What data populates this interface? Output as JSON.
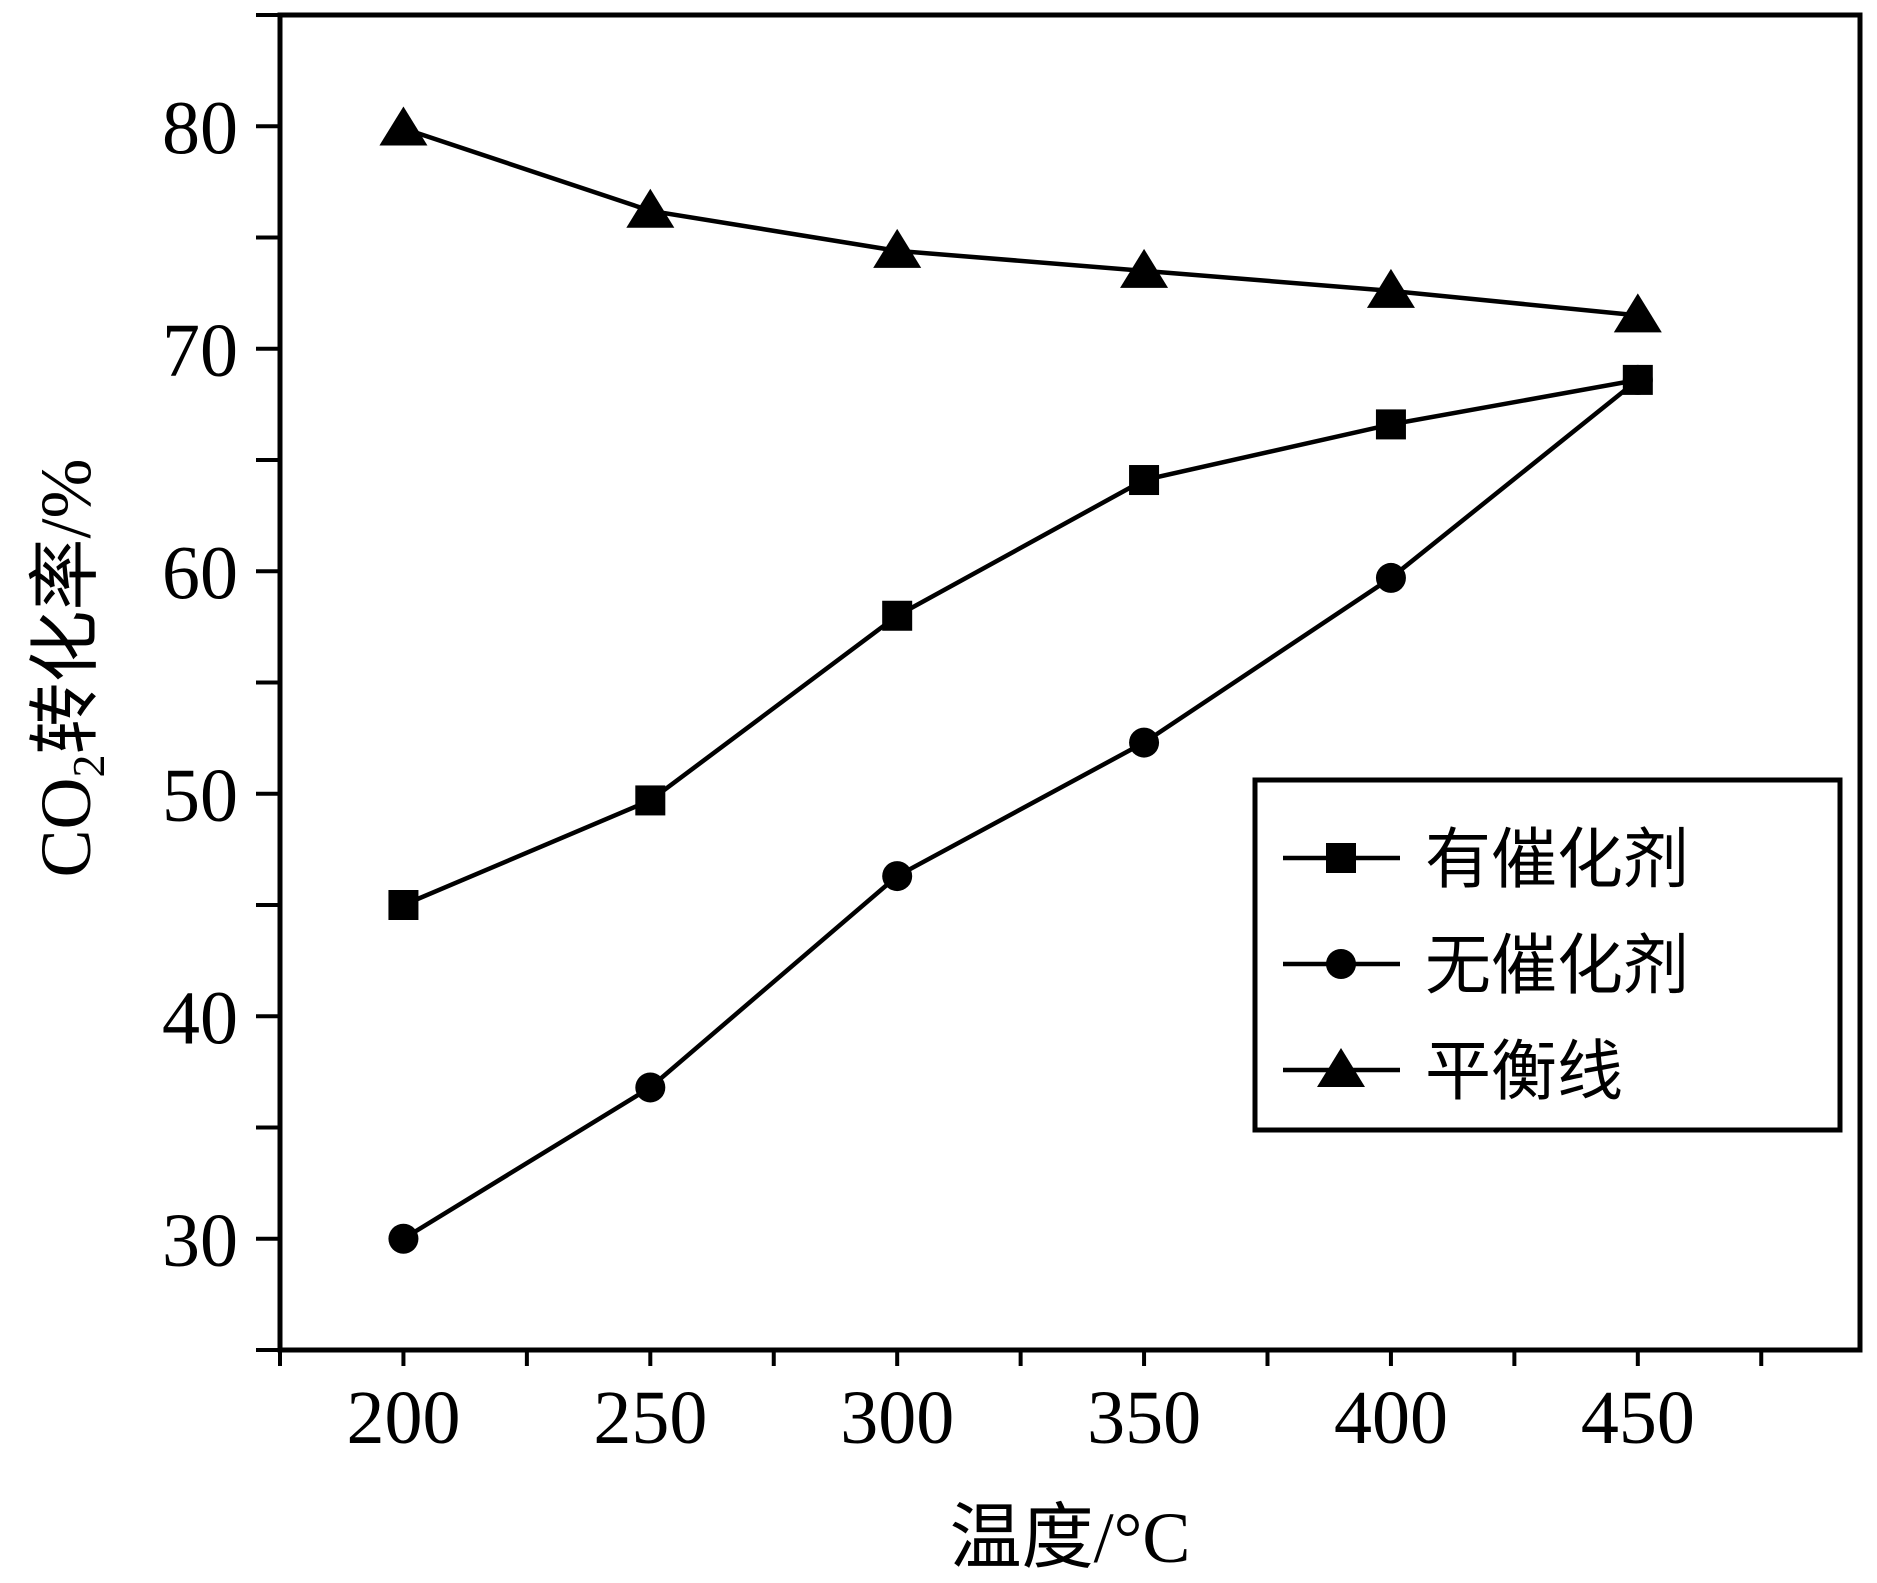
{
  "chart_data": {
    "type": "line",
    "title": "",
    "xlabel": "温度/°C",
    "ylabel_prefix": "CO",
    "ylabel_subscript": "2",
    "ylabel_suffix": "转化率/%",
    "x": [
      200,
      250,
      300,
      350,
      400,
      450
    ],
    "x_tick_labels": [
      "200",
      "250",
      "300",
      "350",
      "400",
      "450"
    ],
    "y_tick_labels": [
      "30",
      "40",
      "50",
      "60",
      "70",
      "80"
    ],
    "xlim": [
      175,
      495
    ],
    "ylim": [
      25,
      85
    ],
    "grid": false,
    "legend_position": "right",
    "series": [
      {
        "name": "有催化剂",
        "marker": "square",
        "values": [
          45.0,
          49.7,
          58.0,
          64.1,
          66.6,
          68.6
        ]
      },
      {
        "name": "无催化剂",
        "marker": "circle",
        "values": [
          30.0,
          36.8,
          46.3,
          52.3,
          59.7,
          68.6
        ]
      },
      {
        "name": "平衡线",
        "marker": "triangle",
        "values": [
          79.9,
          76.2,
          74.4,
          73.5,
          72.6,
          71.5
        ]
      }
    ],
    "colors": {
      "line": "#000000",
      "background": "#ffffff"
    }
  }
}
